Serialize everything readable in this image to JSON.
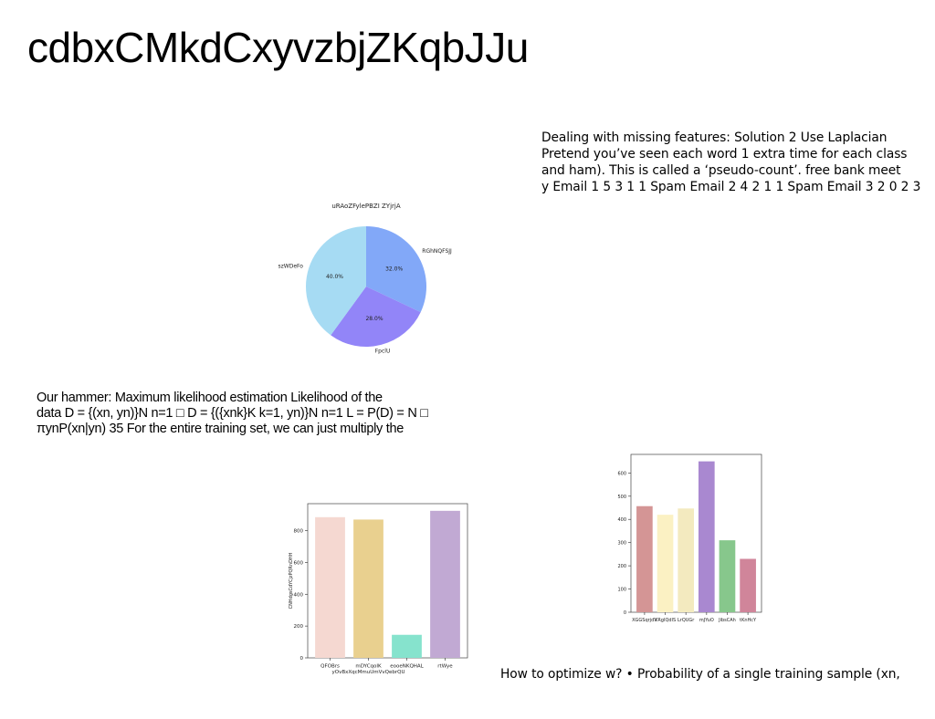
{
  "title": "cdbxCMkdCxyvzbjZKqbJJu",
  "paragraphs": {
    "laplace": [
      "Dealing with missing features: Solution 2 Use Laplacian",
      "Pretend you’ve seen each word 1 extra time for each class",
      "and ham). This is called a ‘pseudo-count’. free bank meet",
      "y Email 1 5 3 1 1 Spam Email 2 4 2 1 1 Spam Email 3 2 0 2 3"
    ],
    "hammer": [
      "Our hammer: Maximum likelihood estimation Likelihood of the",
      "data D = {(xn, yn)}N n=1 □ D = {({xnk}K k=1, yn)}N n=1 L = P(D) = N □",
      "πynP(xn|yn) 35 For the entire training set, we can just multiply the"
    ],
    "optimize": [
      "How to optimize w? • Probability of a single training sample (xn,"
    ]
  },
  "chart_data": [
    {
      "type": "pie",
      "title": "uRAoZFylePBZI ZYjrjA",
      "slices": [
        {
          "label": "RGhNQFSJJ",
          "value": 32.0,
          "pct_label": "32.0%",
          "color": "#82a8f8"
        },
        {
          "label": "FpclU",
          "value": 28.0,
          "pct_label": "28.0%",
          "color": "#9285f8"
        },
        {
          "label": "szWDeFo",
          "value": 40.0,
          "pct_label": "40.0%",
          "color": "#a6dbf3"
        }
      ]
    },
    {
      "type": "bar",
      "title": "",
      "xlabel": "",
      "ylabel": "CNHdgsCdYCjzPQRnDHH",
      "categories": [
        "QFOBrs",
        "mDYCqoIK\nyOvBxXqcMmuUmVvQebrQU",
        "eooeNKQHAL",
        "rtWye"
      ],
      "values": [
        885,
        870,
        145,
        925
      ],
      "colors": [
        "#f5d8d1",
        "#e9d08f",
        "#86e3cd",
        "#c1a9d3"
      ],
      "ylim": [
        0,
        970
      ],
      "yticks": [
        0,
        200,
        400,
        600,
        800
      ]
    },
    {
      "type": "bar",
      "title": "",
      "xlabel": "",
      "ylabel": "",
      "categories": [
        "XGGSqrjdV",
        "XRgIQdlS",
        "LrQUGr",
        "mJYuO",
        "JibsCAh",
        "tKnHcY"
      ],
      "values": [
        457,
        420,
        447,
        650,
        310,
        230
      ],
      "colors": [
        "#d49595",
        "#fbf1c3",
        "#f3eabf",
        "#a988d0",
        "#87c78c",
        "#d0859a"
      ],
      "ylim": [
        0,
        680
      ],
      "yticks": [
        0,
        100,
        200,
        300,
        400,
        500,
        600
      ]
    }
  ]
}
